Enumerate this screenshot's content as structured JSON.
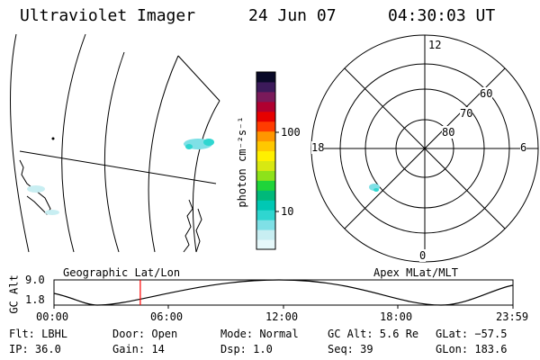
{
  "header": {
    "title": "Ultraviolet Imager",
    "date": "24 Jun 07",
    "time": "04:30:03 UT"
  },
  "colorbar": {
    "unit_label": "photon cm⁻²s⁻¹",
    "tick_100": "100",
    "tick_10": "10",
    "colors": [
      "#e6f8fa",
      "#c8eef2",
      "#7fe0e6",
      "#2fd6d0",
      "#00c8b4",
      "#00b97a",
      "#1fd43a",
      "#8ee21a",
      "#d8e812",
      "#fff000",
      "#ffc800",
      "#ff9600",
      "#ff3c00",
      "#e60000",
      "#b00030",
      "#7a1a5a",
      "#3c1a5a",
      "#0a0a28"
    ]
  },
  "polar_plot": {
    "mlt_labels": {
      "top": "12",
      "left": "18",
      "right": "6",
      "bottom": "0"
    },
    "lat_labels": [
      "60",
      "70",
      "80"
    ]
  },
  "altitude_panel": {
    "left_title": "Geographic Lat/Lon",
    "right_title": "Apex MLat/MLT",
    "ylabel": "GC Alt",
    "ymax": "9.0",
    "ymin": "1.8",
    "x_ticks": [
      "00:00",
      "06:00",
      "12:00",
      "18:00",
      "23:59"
    ],
    "current_time_fraction": 0.188,
    "marker_color": "#ff0000"
  },
  "info": {
    "flt": "Flt: LBHL",
    "door": "Door: Open",
    "mode": "Mode: Normal",
    "gc_alt": "GC Alt: 5.6 Re",
    "glat": "GLat: −57.5",
    "ip": "IP: 36.0",
    "gain": "Gain: 14",
    "dsp": "Dsp:   1.0",
    "seq": "Seq: 39",
    "glon": "GLon: 183.6"
  }
}
